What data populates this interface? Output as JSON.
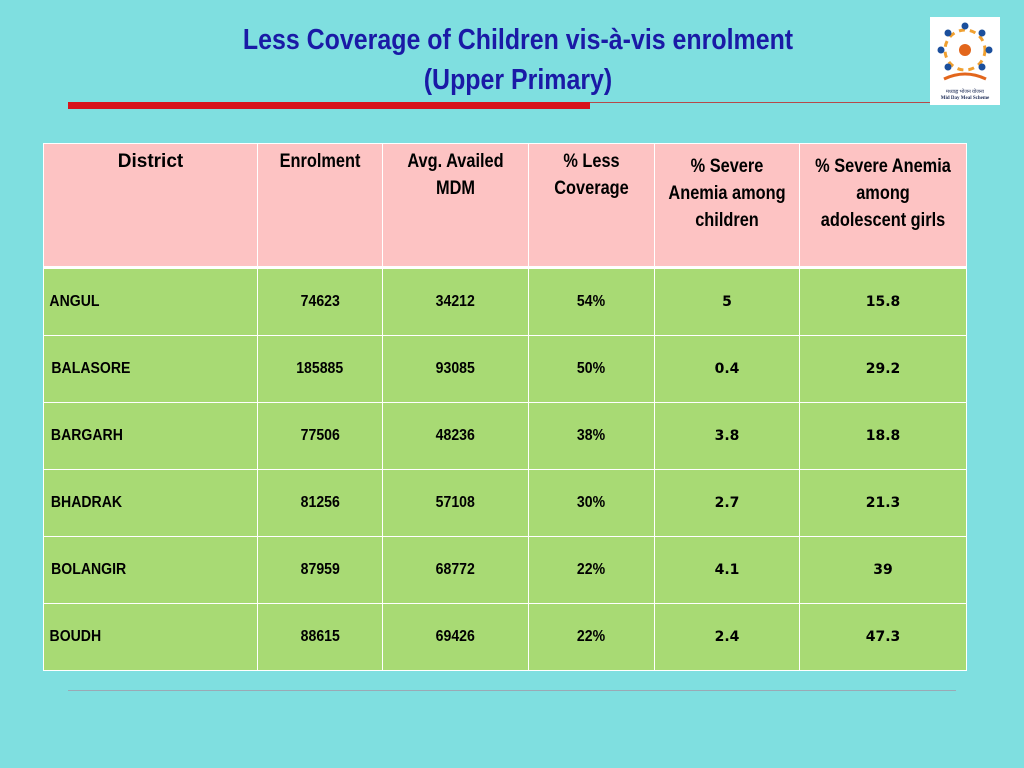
{
  "title": {
    "line1": "Less Coverage of Children vis-à-vis enrolment",
    "line2": "(Upper Primary)"
  },
  "logo": {
    "caption_hindi": "मध्याह्न भोजन योजना",
    "caption_english": "Mid Day Meal Scheme",
    "icon": "mid-day-meal-logo"
  },
  "colors": {
    "background": "#7fdfe0",
    "title": "#1a1aa6",
    "header_fill": "#fdc3c3",
    "row_fill": "#a8da74",
    "accent_rule": "#d7141c"
  },
  "table": {
    "headers": [
      "District",
      "Enrolment",
      "Avg. Availed MDM",
      "% Less Coverage",
      "% Severe Anemia among children",
      "% Severe Anemia among adolescent girls"
    ],
    "rows": [
      [
        "ANGUL",
        "74623",
        "34212",
        "54%",
        "5",
        "15.8"
      ],
      [
        "BALASORE",
        "185885",
        "93085",
        "50%",
        "0.4",
        "29.2"
      ],
      [
        "BARGARH",
        "77506",
        "48236",
        "38%",
        "3.8",
        "18.8"
      ],
      [
        "BHADRAK",
        "81256",
        "57108",
        "30%",
        "2.7",
        "21.3"
      ],
      [
        "BOLANGIR",
        "87959",
        "68772",
        "22%",
        "4.1",
        "39"
      ],
      [
        "BOUDH",
        "88615",
        "69426",
        "22%",
        "2.4",
        "47.3"
      ]
    ]
  }
}
